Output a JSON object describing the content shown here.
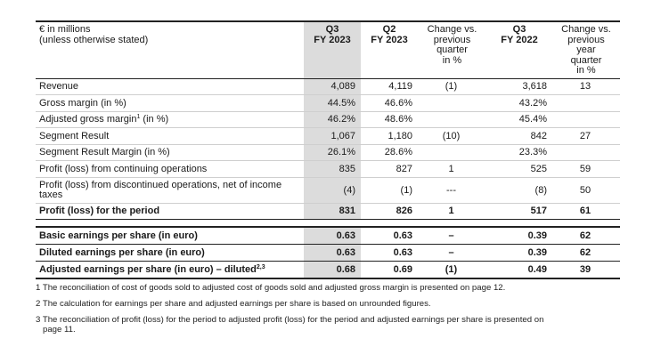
{
  "header": {
    "label_line1": "€ in millions",
    "label_line2": "(unless otherwise stated)",
    "q3_fy2023": [
      "Q3",
      "FY 2023"
    ],
    "q2_fy2023": [
      "Q2",
      "FY 2023"
    ],
    "change_prev_quarter": [
      "Change vs.",
      "previous",
      "quarter",
      "in %"
    ],
    "q3_fy2022": [
      "Q3",
      "FY 2022"
    ],
    "change_prev_year": [
      "Change vs.",
      "previous",
      "year",
      "quarter",
      "in %"
    ]
  },
  "rows": [
    {
      "label": "Revenue",
      "q3": "4,089",
      "q2": "4,119",
      "chg_q": "(1)",
      "q3_prev": "3,618",
      "chg_y": "13"
    },
    {
      "label": "Gross margin (in %)",
      "q3": "44.5%",
      "q2": "46.6%",
      "chg_q": "",
      "q3_prev": "43.2%",
      "chg_y": ""
    },
    {
      "label": "Adjusted gross margin",
      "sup": "1",
      "label_suffix": " (in %)",
      "q3": "46.2%",
      "q2": "48.6%",
      "chg_q": "",
      "q3_prev": "45.4%",
      "chg_y": ""
    },
    {
      "label": "Segment Result",
      "q3": "1,067",
      "q2": "1,180",
      "chg_q": "(10)",
      "q3_prev": "842",
      "chg_y": "27"
    },
    {
      "label": "Segment Result Margin (in %)",
      "q3": "26.1%",
      "q2": "28.6%",
      "chg_q": "",
      "q3_prev": "23.3%",
      "chg_y": ""
    },
    {
      "label": "Profit (loss) from continuing operations",
      "q3": "835",
      "q2": "827",
      "chg_q": "1",
      "q3_prev": "525",
      "chg_y": "59"
    },
    {
      "label": "Profit (loss) from discontinued operations, net of income taxes",
      "q3": "(4)",
      "q2": "(1)",
      "chg_q": "---",
      "q3_prev": "(8)",
      "chg_y": "50"
    }
  ],
  "total": {
    "label": "Profit (loss) for the period",
    "q3": "831",
    "q2": "826",
    "chg_q": "1",
    "q3_prev": "517",
    "chg_y": "61"
  },
  "eps": [
    {
      "label": "Basic earnings per share (in euro)",
      "q3": "0.63",
      "q2": "0.63",
      "chg_q": "–",
      "q3_prev": "0.39",
      "chg_y": "62"
    },
    {
      "label": "Diluted earnings per share (in euro)",
      "q3": "0.63",
      "q2": "0.63",
      "chg_q": "–",
      "q3_prev": "0.39",
      "chg_y": "62"
    },
    {
      "label": "Adjusted earnings per share (in euro) – diluted",
      "sup": "2,3",
      "q3": "0.68",
      "q2": "0.69",
      "chg_q": "(1)",
      "q3_prev": "0.49",
      "chg_y": "39"
    }
  ],
  "footnotes": [
    {
      "text": "1 The reconciliation of cost of goods sold to adjusted cost of goods sold and adjusted gross margin is presented on page 12."
    },
    {
      "text": "2 The calculation for earnings per share and adjusted earnings per share is based on unrounded figures."
    },
    {
      "text": "3 The reconciliation of profit (loss) for the period to adjusted profit (loss) for the period and adjusted earnings per share is presented on",
      "cont": "page 11."
    }
  ]
}
